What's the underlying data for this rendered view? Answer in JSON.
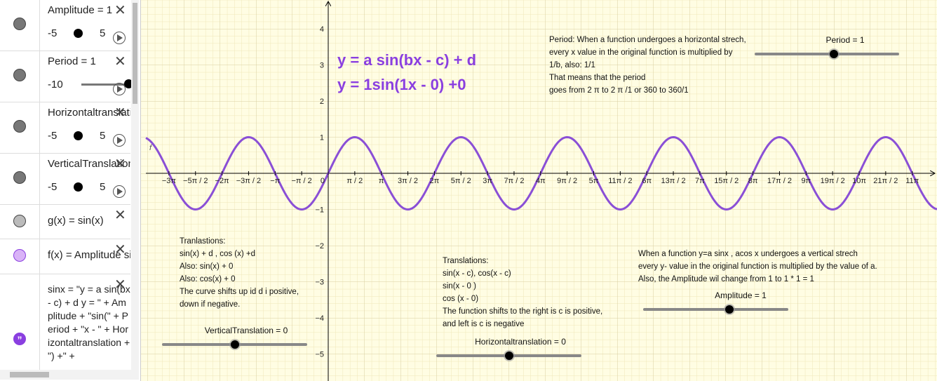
{
  "algebra": {
    "items": [
      {
        "label": "Amplitude = 1",
        "min": "-5",
        "max": "5"
      },
      {
        "label": "Period = 1",
        "min": "-10"
      },
      {
        "label": "Horizontaltranslation",
        "min": "-5",
        "max": "5"
      },
      {
        "label": "VerticalTranslation",
        "min": "-5",
        "max": "5"
      },
      {
        "label": "g(x) = sin(x)"
      },
      {
        "label": "f(x) = Amplitude sin"
      },
      {
        "label": "sinx = \"y = a sin(bx - c) + d y = \" + Amplitude + \"sin(\" + Period + \"x - \" + Horizontaltranslation + \") +\" +"
      }
    ]
  },
  "graph": {
    "formula": "y = a sin(bx - c) + d",
    "formula_value": "y = 1sin(1x - 0) +0",
    "function_label": "f",
    "y_ticks": [
      "4",
      "3",
      "2",
      "1",
      "−1",
      "−2",
      "−3",
      "−4",
      "−5"
    ],
    "x_ticks": [
      "−3π",
      "−5π / 2",
      "−2π",
      "−3π / 2",
      "−π",
      "−π / 2",
      "0",
      "π / 2",
      "π",
      "3π / 2",
      "2π",
      "5π / 2",
      "3π",
      "7π / 2",
      "4π",
      "9π / 2",
      "5π",
      "11π / 2",
      "6π",
      "13π / 2",
      "7π",
      "15π / 2",
      "8π",
      "17π / 2",
      "9π",
      "19π / 2",
      "10π",
      "21π / 2",
      "11π"
    ],
    "period_note": [
      "Period: When a function undergoes a horizontal strech,",
      "every x value in the original function is multiplied by",
      " 1/b, also: 1/1",
      "That means that the period",
      "goes from 2 π  to 2 π /1  or 360 to 360/1"
    ],
    "vertical_note": [
      "Tranlastions:",
      "sin(x) + d , cos (x) +d",
      "Also: sin(x) + 0",
      "Also: cos(x) + 0",
      "The curve shifts up id d i positive,",
      "down if negative."
    ],
    "horizontal_note": [
      "Translations:",
      "sin(x - c), cos(x - c)",
      "sin(x - 0 )",
      "cos (x - 0)",
      "The function shifts to the right is c is positive,",
      "and left is c is negative"
    ],
    "amplitude_note": [
      "When a function y=a sinx , acos x undergoes a vertical strech",
      "every y- value in the original function is multiplied by the value of a.",
      "Also, the Amplitude wil change from 1 to 1 * 1 = 1"
    ],
    "sliders": [
      "Period = 1",
      "Amplitude = 1",
      "VerticalTranslation = 0",
      "Horizontaltranslation = 0"
    ]
  }
}
